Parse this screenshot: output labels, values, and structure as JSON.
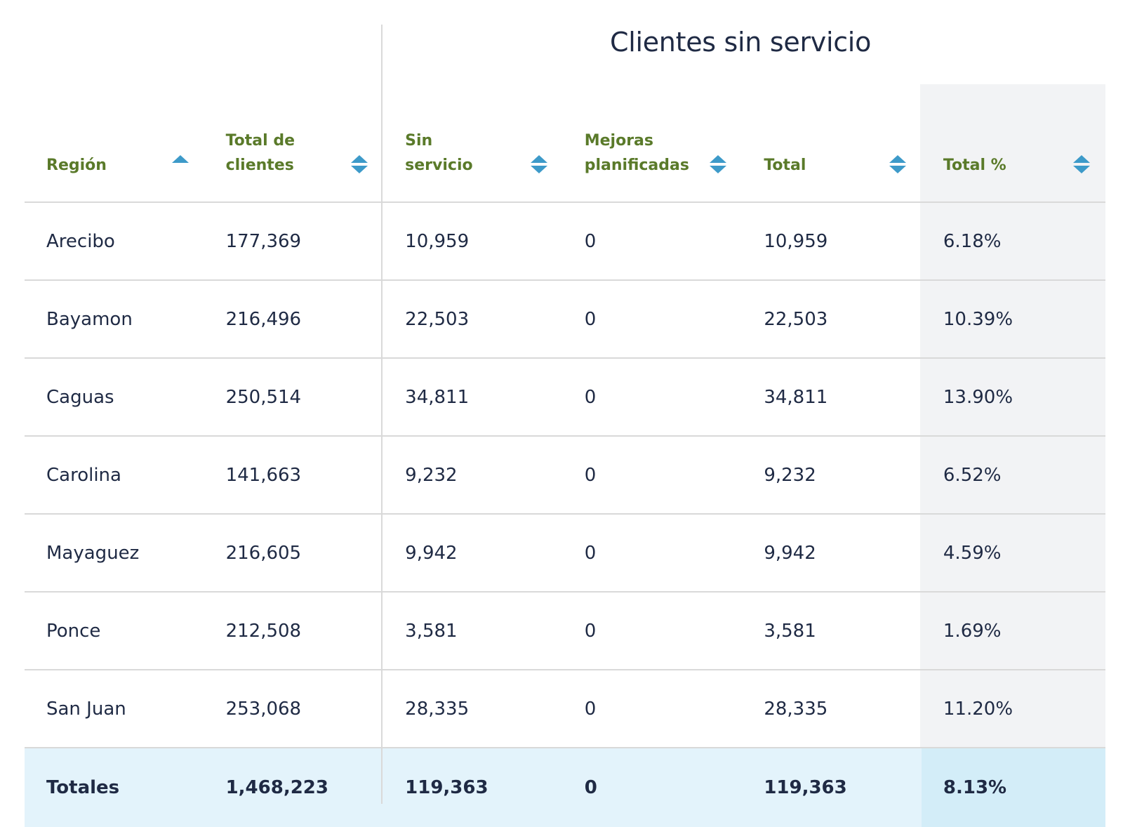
{
  "group_header": "Clientes sin servicio",
  "columns": [
    {
      "label": "Región",
      "sort": "asc"
    },
    {
      "label": "Total de clientes",
      "sort": "both"
    },
    {
      "label": "Sin servicio",
      "sort": "both"
    },
    {
      "label": "Mejoras planificadas",
      "sort": "both"
    },
    {
      "label": "Total",
      "sort": "both"
    },
    {
      "label": "Total %",
      "sort": "both"
    }
  ],
  "rows": [
    [
      "Arecibo",
      "177,369",
      "10,959",
      "0",
      "10,959",
      "6.18%"
    ],
    [
      "Bayamon",
      "216,496",
      "22,503",
      "0",
      "22,503",
      "10.39%"
    ],
    [
      "Caguas",
      "250,514",
      "34,811",
      "0",
      "34,811",
      "13.90%"
    ],
    [
      "Carolina",
      "141,663",
      "9,232",
      "0",
      "9,232",
      "6.52%"
    ],
    [
      "Mayaguez",
      "216,605",
      "9,942",
      "0",
      "9,942",
      "4.59%"
    ],
    [
      "Ponce",
      "212,508",
      "3,581",
      "0",
      "3,581",
      "1.69%"
    ],
    [
      "San Juan",
      "253,068",
      "28,335",
      "0",
      "28,335",
      "11.20%"
    ]
  ],
  "totals": [
    "Totales",
    "1,468,223",
    "119,363",
    "0",
    "119,363",
    "8.13%"
  ],
  "colors": {
    "header_text": "#5a7a2a",
    "sort_icon": "#3d9ac9",
    "totals_row_bg": "#e3f3fb",
    "highlight_col_bg": "#f2f3f5"
  }
}
